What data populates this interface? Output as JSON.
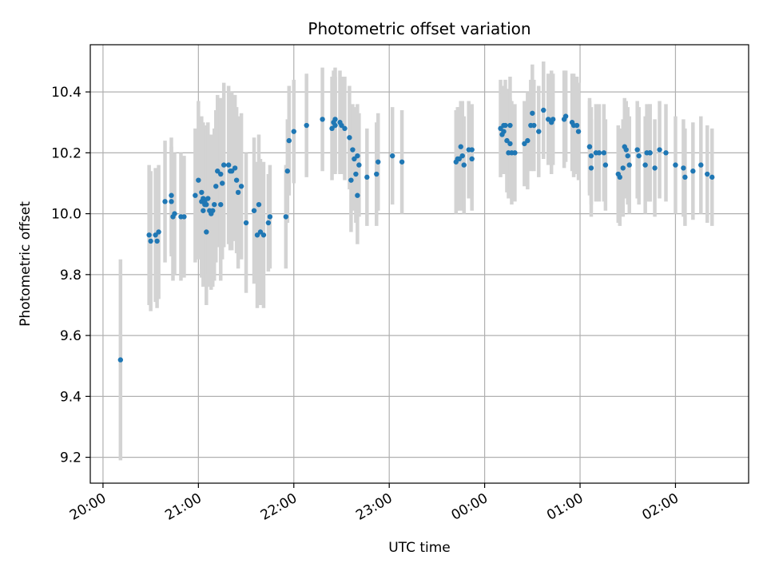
{
  "chart_data": {
    "type": "scatter",
    "title": "Photometric offset variation",
    "xlabel": "UTC time",
    "ylabel": "Photometric offset",
    "xlim": [
      "19:52",
      "02:46"
    ],
    "ylim": [
      9.115,
      10.555
    ],
    "x_ticks": [
      "20:00",
      "21:00",
      "22:00",
      "23:00",
      "00:00",
      "01:00",
      "02:00"
    ],
    "y_ticks": [
      9.2,
      9.4,
      9.6,
      9.8,
      10.0,
      10.2,
      10.4
    ],
    "y_tick_labels": [
      "9.2",
      "9.4",
      "9.6",
      "9.8",
      "10.0",
      "10.2",
      "10.4"
    ],
    "grid": true,
    "colors": {
      "points": "#1f77b4",
      "errorbars": "#d3d3d3",
      "grid": "#b0b0b0"
    },
    "series": [
      {
        "x": [
          "20:11",
          "20:29",
          "20:30",
          "20:33",
          "20:34",
          "20:35",
          "20:39",
          "20:43",
          "20:43",
          "20:44",
          "20:45",
          "20:49",
          "20:51",
          "20:58",
          "21:00",
          "21:02",
          "21:02",
          "21:03",
          "21:03",
          "21:04",
          "21:04",
          "21:05",
          "21:05",
          "21:06",
          "21:07",
          "21:08",
          "21:09",
          "21:10",
          "21:11",
          "21:12",
          "21:14",
          "21:14",
          "21:15",
          "21:16",
          "21:19",
          "21:20",
          "21:21",
          "21:23",
          "21:24",
          "21:25",
          "21:27",
          "21:30",
          "21:35",
          "21:37",
          "21:38",
          "21:39",
          "21:41",
          "21:44",
          "21:45",
          "21:55",
          "21:56",
          "21:57",
          "22:00",
          "22:08",
          "22:18",
          "22:24",
          "22:25",
          "22:26",
          "22:26",
          "22:29",
          "22:30",
          "22:32",
          "22:35",
          "22:36",
          "22:37",
          "22:38",
          "22:39",
          "22:40",
          "22:40",
          "22:41",
          "22:46",
          "22:52",
          "22:53",
          "23:02",
          "23:08",
          "23:42",
          "23:43",
          "23:44",
          "23:45",
          "23:46",
          "23:47",
          "23:50",
          "23:52",
          "23:52",
          "24:10",
          "24:11",
          "24:12",
          "24:12",
          "24:13",
          "24:14",
          "24:15",
          "24:16",
          "24:16",
          "24:17",
          "24:19",
          "24:25",
          "24:27",
          "24:29",
          "24:30",
          "24:31",
          "24:34",
          "24:37",
          "24:40",
          "24:42",
          "24:43",
          "24:50",
          "24:51",
          "24:55",
          "24:56",
          "24:58",
          "24:59",
          "25:06",
          "25:06",
          "25:07",
          "25:07",
          "25:10",
          "25:12",
          "25:15",
          "25:16",
          "25:24",
          "25:25",
          "25:27",
          "25:28",
          "25:29",
          "25:30",
          "25:31",
          "25:36",
          "25:37",
          "25:41",
          "25:42",
          "25:44",
          "25:44",
          "25:47",
          "25:50",
          "25:54",
          "26:00",
          "26:05",
          "26:06",
          "26:11",
          "26:16",
          "26:20",
          "26:23"
        ],
        "y": [
          9.52,
          9.93,
          9.91,
          9.93,
          9.91,
          9.94,
          10.04,
          10.06,
          10.04,
          9.99,
          10.0,
          9.99,
          9.99,
          10.06,
          10.11,
          10.07,
          10.04,
          10.01,
          10.05,
          10.03,
          10.04,
          10.03,
          9.94,
          10.05,
          10.01,
          10.0,
          10.01,
          10.03,
          10.09,
          10.14,
          10.13,
          10.03,
          10.1,
          10.16,
          10.16,
          10.14,
          10.14,
          10.15,
          10.11,
          10.07,
          10.09,
          9.97,
          10.01,
          9.93,
          10.03,
          9.94,
          9.93,
          9.97,
          9.99,
          9.99,
          10.14,
          10.24,
          10.27,
          10.29,
          10.31,
          10.28,
          10.3,
          10.31,
          10.29,
          10.3,
          10.29,
          10.28,
          10.25,
          10.11,
          10.21,
          10.18,
          10.13,
          10.06,
          10.19,
          10.16,
          10.12,
          10.13,
          10.17,
          10.19,
          10.17,
          10.17,
          10.18,
          10.18,
          10.22,
          10.19,
          10.16,
          10.21,
          10.21,
          10.18,
          10.28,
          10.26,
          10.27,
          10.29,
          10.29,
          10.24,
          10.2,
          10.23,
          10.29,
          10.2,
          10.2,
          10.23,
          10.24,
          10.29,
          10.33,
          10.29,
          10.27,
          10.34,
          10.31,
          10.3,
          10.31,
          10.31,
          10.32,
          10.3,
          10.29,
          10.29,
          10.27,
          10.22,
          10.22,
          10.19,
          10.15,
          10.2,
          10.2,
          10.2,
          10.16,
          10.13,
          10.12,
          10.15,
          10.22,
          10.21,
          10.19,
          10.16,
          10.21,
          10.19,
          10.16,
          10.2,
          10.2,
          10.2,
          10.15,
          10.21,
          10.2,
          10.16,
          10.15,
          10.12,
          10.14,
          10.16,
          10.13,
          10.12
        ],
        "err": [
          0.33,
          0.23,
          0.23,
          0.22,
          0.22,
          0.22,
          0.2,
          0.19,
          0.18,
          0.21,
          0.2,
          0.21,
          0.2,
          0.22,
          0.26,
          0.25,
          0.25,
          0.25,
          0.25,
          0.25,
          0.25,
          0.25,
          0.24,
          0.25,
          0.25,
          0.25,
          0.25,
          0.25,
          0.25,
          0.25,
          0.25,
          0.25,
          0.25,
          0.27,
          0.26,
          0.26,
          0.26,
          0.24,
          0.24,
          0.25,
          0.24,
          0.23,
          0.24,
          0.24,
          0.23,
          0.24,
          0.24,
          0.16,
          0.17,
          0.17,
          0.17,
          0.18,
          0.17,
          0.17,
          0.17,
          0.17,
          0.17,
          0.17,
          0.16,
          0.17,
          0.16,
          0.17,
          0.17,
          0.17,
          0.15,
          0.17,
          0.16,
          0.16,
          0.17,
          0.17,
          0.16,
          0.17,
          0.16,
          0.16,
          0.17,
          0.17,
          0.17,
          0.17,
          0.15,
          0.18,
          0.16,
          0.16,
          0.15,
          0.17,
          0.16,
          0.13,
          0.14,
          0.13,
          0.15,
          0.17,
          0.15,
          0.15,
          0.16,
          0.17,
          0.16,
          0.14,
          0.16,
          0.15,
          0.16,
          0.15,
          0.15,
          0.16,
          0.15,
          0.17,
          0.15,
          0.16,
          0.15,
          0.16,
          0.17,
          0.16,
          0.16,
          0.16,
          0.15,
          0.16,
          0.16,
          0.16,
          0.16,
          0.16,
          0.15,
          0.16,
          0.16,
          0.16,
          0.16,
          0.16,
          0.16,
          0.16,
          0.16,
          0.16,
          0.16,
          0.16,
          0.16,
          0.16,
          0.16,
          0.16,
          0.16,
          0.16,
          0.16,
          0.16,
          0.16,
          0.16,
          0.16,
          0.16
        ]
      }
    ]
  }
}
